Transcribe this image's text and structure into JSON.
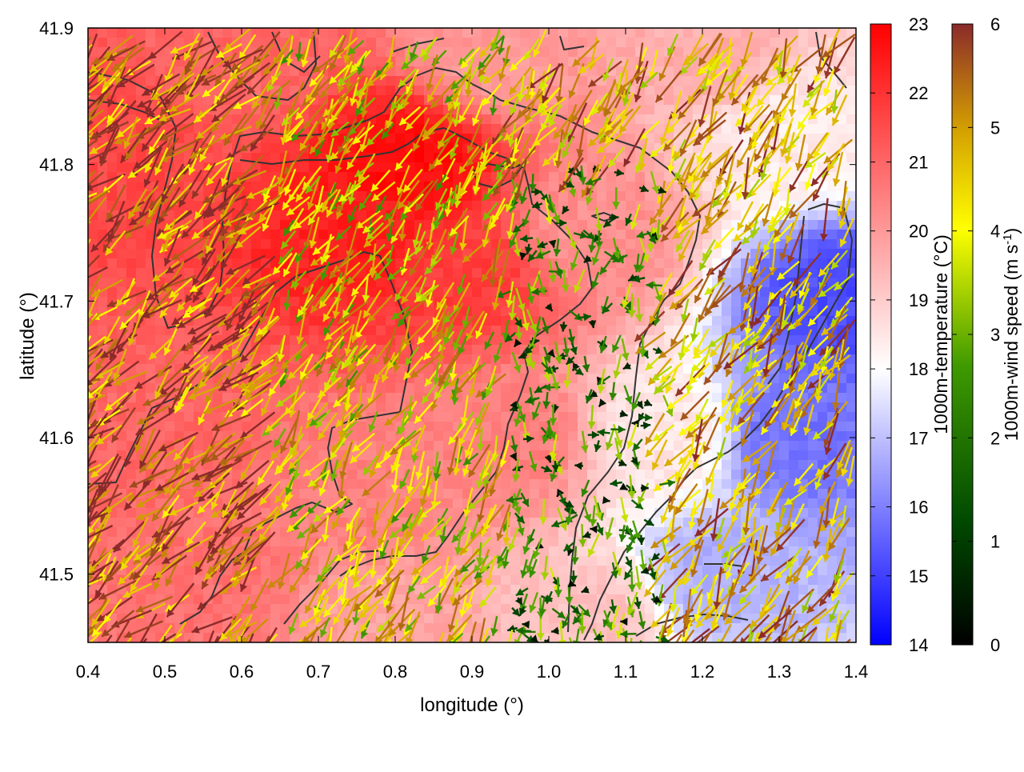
{
  "chart_data": {
    "type": "heatmap",
    "title": "",
    "xlabel": "longitude (°)",
    "ylabel": "latitude (°)",
    "xlim": [
      0.4,
      1.4
    ],
    "ylim": [
      41.45,
      41.9
    ],
    "x_ticks": [
      "0.4",
      "0.5",
      "0.6",
      "0.7",
      "0.8",
      "0.9",
      "1.0",
      "1.1",
      "1.2",
      "1.3",
      "1.4"
    ],
    "y_ticks": [
      "41.5",
      "41.6",
      "41.7",
      "41.8",
      "41.9"
    ],
    "grid": false,
    "legend": "none",
    "temperature_colorbar": {
      "label": "1000m-temperature (°C)",
      "range": [
        14,
        23
      ],
      "ticks": [
        "14",
        "15",
        "16",
        "17",
        "18",
        "19",
        "20",
        "21",
        "22",
        "23"
      ],
      "colors": {
        "low": "#0000ff",
        "mid": "#ffffff",
        "high": "#ff0000"
      }
    },
    "wind_colorbar": {
      "label_main": "1000m-wind speed (m s",
      "label_sup": "-1",
      "label_end": ")",
      "range": [
        0,
        6
      ],
      "ticks": [
        "0",
        "1",
        "2",
        "3",
        "4",
        "5",
        "6"
      ],
      "colors": [
        "#000000",
        "#005000",
        "#3f9a00",
        "#ffff00",
        "#d4a000",
        "#8b2a2a"
      ]
    },
    "temperature_field": {
      "description_points": [
        {
          "lon": 0.45,
          "lat": 41.8,
          "t": 21.6
        },
        {
          "lon": 0.5,
          "lat": 41.6,
          "t": 21.0
        },
        {
          "lon": 0.55,
          "lat": 41.5,
          "t": 20.8
        },
        {
          "lon": 0.75,
          "lat": 41.75,
          "t": 22.4
        },
        {
          "lon": 0.82,
          "lat": 41.8,
          "t": 22.8
        },
        {
          "lon": 0.9,
          "lat": 41.72,
          "t": 21.8
        },
        {
          "lon": 0.75,
          "lat": 41.55,
          "t": 20.5
        },
        {
          "lon": 0.95,
          "lat": 41.6,
          "t": 20.5
        },
        {
          "lon": 1.05,
          "lat": 41.75,
          "t": 20.2
        },
        {
          "lon": 1.15,
          "lat": 41.6,
          "t": 18.5
        },
        {
          "lon": 1.22,
          "lat": 41.5,
          "t": 16.8
        },
        {
          "lon": 1.32,
          "lat": 41.6,
          "t": 15.8
        },
        {
          "lon": 1.38,
          "lat": 41.7,
          "t": 15.2
        },
        {
          "lon": 1.3,
          "lat": 41.82,
          "t": 18.4
        },
        {
          "lon": 1.05,
          "lat": 41.47,
          "t": 19.2
        },
        {
          "lon": 0.8,
          "lat": 41.47,
          "t": 19.8
        },
        {
          "lon": 1.2,
          "lat": 41.88,
          "t": 19.6
        },
        {
          "lon": 0.6,
          "lat": 41.88,
          "t": 21.0
        },
        {
          "lon": 0.93,
          "lat": 41.88,
          "t": 20.0
        }
      ]
    },
    "wind_regions": [
      {
        "lon_range": [
          0.4,
          0.65
        ],
        "lat_range": [
          41.45,
          41.9
        ],
        "mean_speed": 5.2,
        "direction_deg": 135
      },
      {
        "lon_range": [
          0.65,
          0.95
        ],
        "lat_range": [
          41.45,
          41.9
        ],
        "mean_speed": 3.8,
        "direction_deg": 150
      },
      {
        "lon_range": [
          0.9,
          1.15
        ],
        "lat_range": [
          41.45,
          41.8
        ],
        "mean_speed": 1.8,
        "direction_deg": 180
      },
      {
        "lon_range": [
          1.15,
          1.4
        ],
        "lat_range": [
          41.45,
          41.9
        ],
        "mean_speed": 4.5,
        "direction_deg": 150
      }
    ]
  }
}
